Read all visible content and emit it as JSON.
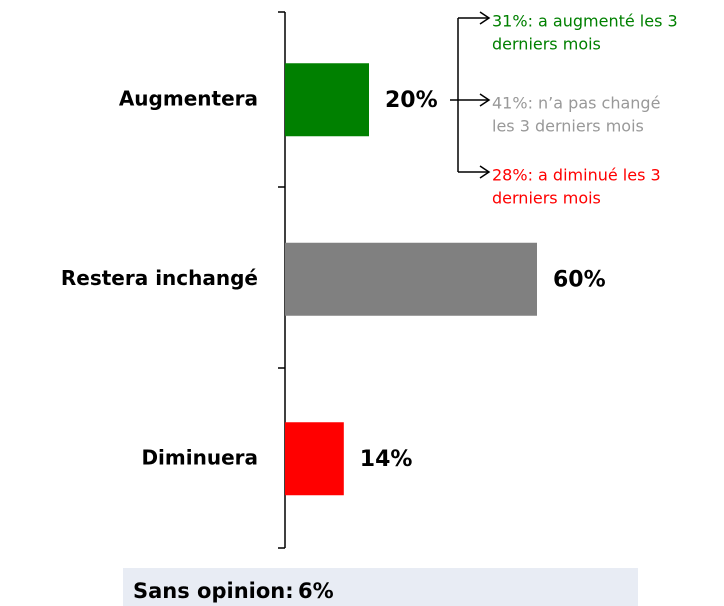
{
  "chart_data": {
    "type": "bar",
    "orientation": "horizontal",
    "categories": [
      "Augmentera",
      "Restera inchangé",
      "Diminuera"
    ],
    "series": [
      {
        "values": [
          20,
          60,
          14
        ],
        "value_labels": [
          "20%",
          "60%",
          "14%"
        ],
        "colors": [
          "#008000",
          "#808080",
          "#ff0000"
        ]
      }
    ],
    "xlim": [
      0,
      100
    ],
    "annotations": [
      {
        "lines": [
          "31%: a augmenté les 3",
          "derniers mois"
        ],
        "color": "#008000"
      },
      {
        "lines": [
          "41%: n’a pas changé",
          "les 3 derniers mois"
        ],
        "color": "#999999"
      },
      {
        "lines": [
          "28%: a diminué les 3",
          "derniers mois"
        ],
        "color": "#ff0000"
      }
    ],
    "footer": {
      "label": "Sans opinion:",
      "value": 6,
      "value_label": "6%"
    }
  }
}
